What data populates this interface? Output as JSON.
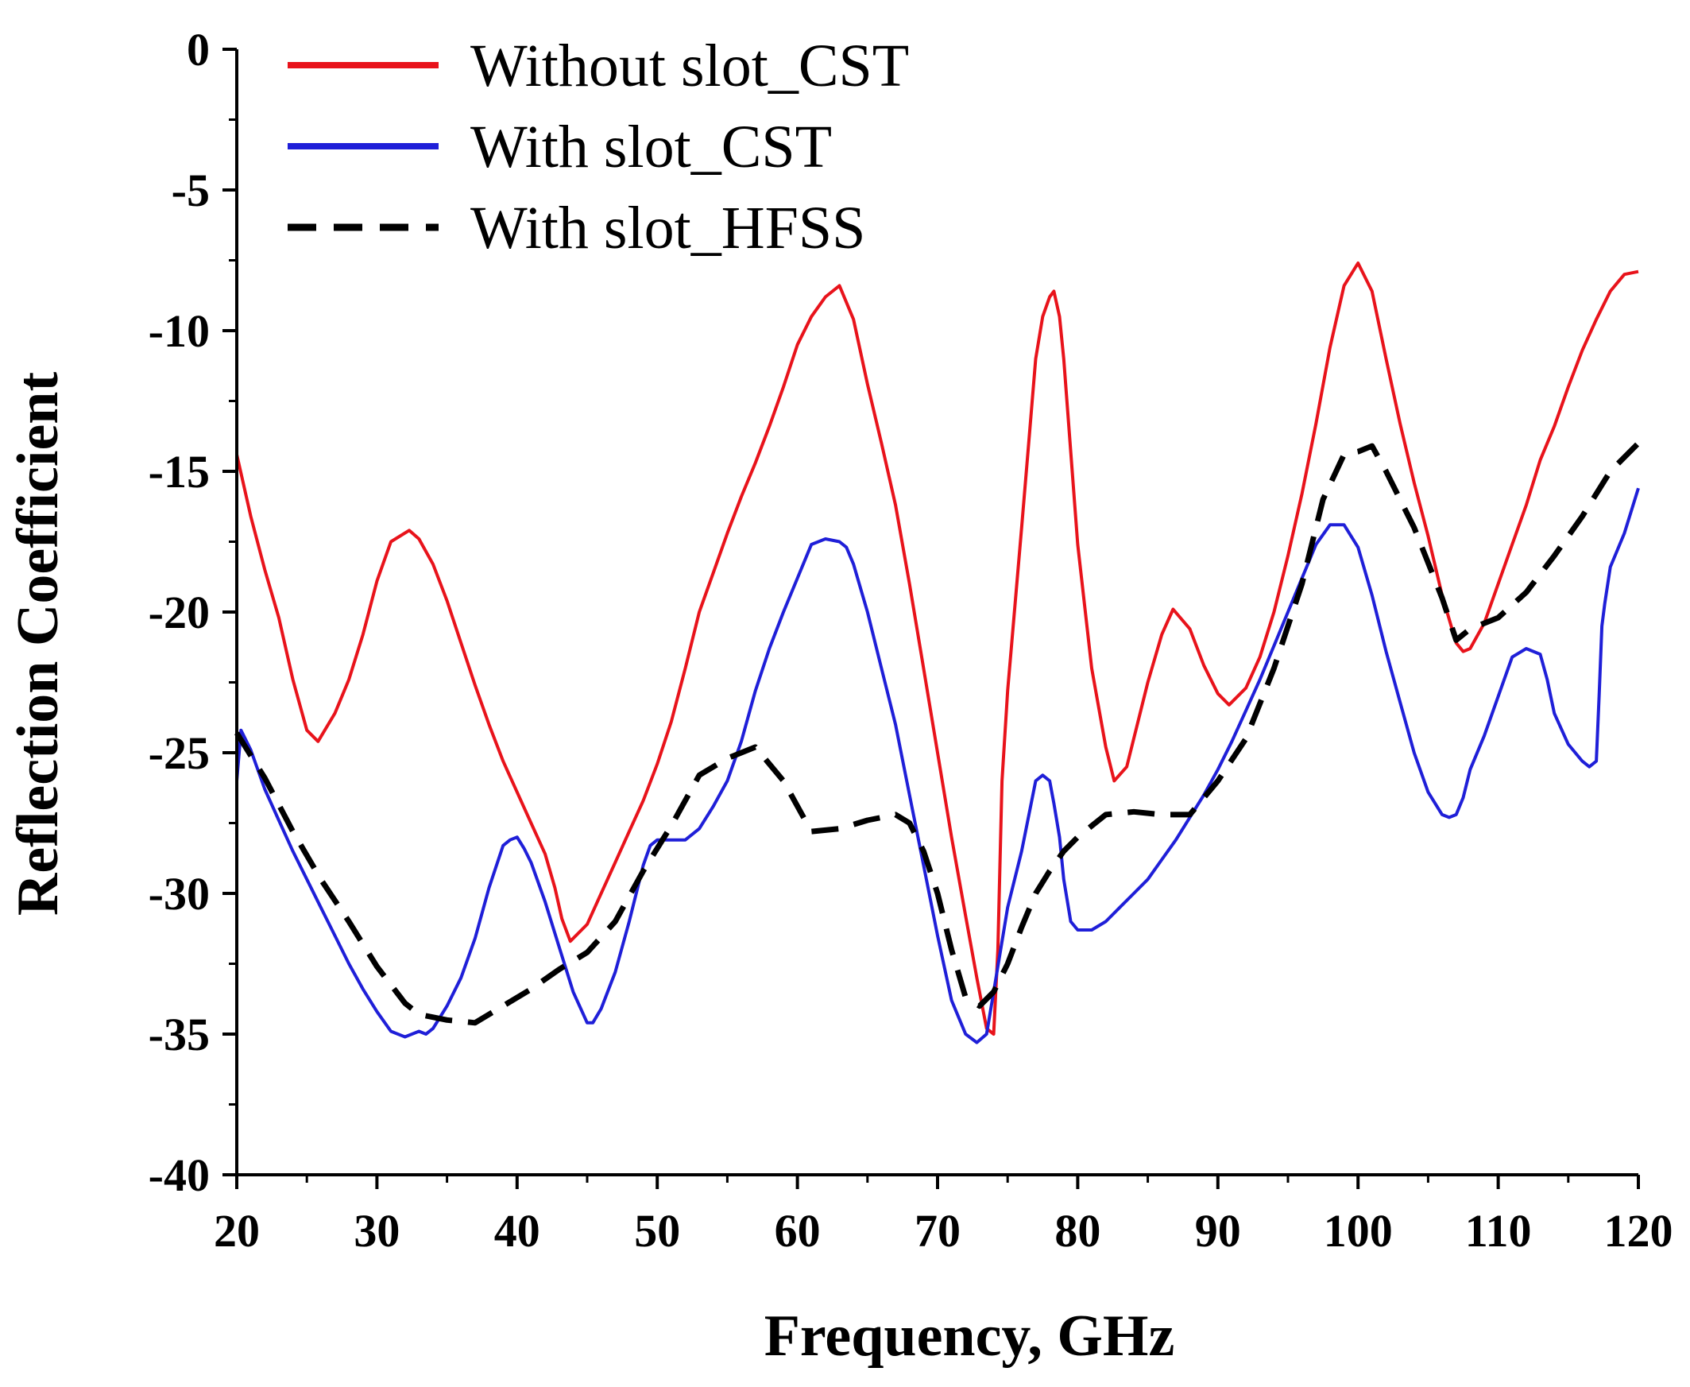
{
  "chart_data": {
    "type": "line",
    "title": "",
    "xlabel": "Frequency, GHz",
    "ylabel": "Reflection Coefficient",
    "xlim": [
      20,
      120
    ],
    "ylim": [
      -40,
      0
    ],
    "x_ticks": [
      20,
      30,
      40,
      50,
      60,
      70,
      80,
      90,
      100,
      110,
      120
    ],
    "x_tick_labels": [
      "20",
      "30",
      "40",
      "50",
      "60",
      "70",
      "80",
      "90",
      "100",
      "110",
      "120"
    ],
    "y_ticks": [
      0,
      -5,
      -10,
      -15,
      -20,
      -25,
      -30,
      -35,
      -40
    ],
    "y_tick_labels": [
      "0",
      "-5",
      "-10",
      "-15",
      "-20",
      "-25",
      "-30",
      "-35",
      "-40"
    ],
    "grid": false,
    "legend_position": "top-left",
    "series": [
      {
        "name": "Without slot_CST",
        "color": "#e8131b",
        "dash": "solid",
        "x": [
          20,
          21,
          22,
          23,
          24,
          25,
          25.8,
          27,
          28,
          29,
          30,
          31,
          32.3,
          33,
          34,
          35,
          36,
          37,
          38,
          39,
          40,
          41,
          42,
          42.7,
          43.2,
          43.8,
          45,
          46,
          47,
          48,
          49,
          50,
          51,
          52,
          53,
          54,
          55,
          56,
          57,
          58,
          59,
          60,
          61,
          62,
          63,
          64,
          65,
          66,
          67,
          68,
          69,
          70,
          71,
          72,
          72.8,
          73.5,
          74,
          74.3,
          74.6,
          75,
          76,
          76.5,
          77,
          77.5,
          78,
          78.3,
          78.7,
          79,
          79.5,
          80,
          81,
          82,
          82.6,
          83.5,
          85,
          86,
          86.8,
          88,
          89,
          90,
          90.8,
          92,
          93,
          94,
          95,
          96,
          97,
          98,
          99,
          100,
          101,
          102,
          103,
          104,
          105,
          106,
          107,
          107.5,
          108,
          109,
          110,
          111,
          112,
          113,
          114,
          115,
          116,
          117,
          118,
          119,
          120
        ],
        "values": [
          -14.4,
          -16.6,
          -18.5,
          -20.2,
          -22.4,
          -24.2,
          -24.6,
          -23.6,
          -22.4,
          -20.8,
          -18.9,
          -17.5,
          -17.1,
          -17.4,
          -18.3,
          -19.6,
          -21.1,
          -22.6,
          -24.0,
          -25.3,
          -26.4,
          -27.5,
          -28.6,
          -29.8,
          -30.9,
          -31.7,
          -31.1,
          -30.0,
          -28.9,
          -27.8,
          -26.7,
          -25.4,
          -23.9,
          -22.0,
          -20.0,
          -18.6,
          -17.2,
          -15.9,
          -14.7,
          -13.4,
          -12.0,
          -10.5,
          -9.5,
          -8.8,
          -8.4,
          -9.6,
          -11.9,
          -14.0,
          -16.2,
          -19.0,
          -22.0,
          -25.0,
          -28.0,
          -30.8,
          -33.0,
          -34.8,
          -35.0,
          -32.0,
          -26.0,
          -22.8,
          -17.0,
          -14.0,
          -11.0,
          -9.5,
          -8.8,
          -8.6,
          -9.5,
          -11.0,
          -14.3,
          -17.6,
          -22.0,
          -24.8,
          -26.0,
          -25.5,
          -22.5,
          -20.8,
          -19.9,
          -20.6,
          -21.9,
          -22.9,
          -23.3,
          -22.7,
          -21.6,
          -20.0,
          -18.0,
          -15.8,
          -13.3,
          -10.6,
          -8.4,
          -7.6,
          -8.6,
          -11.0,
          -13.3,
          -15.4,
          -17.3,
          -19.4,
          -21.1,
          -21.4,
          -21.3,
          -20.4,
          -19.0,
          -17.6,
          -16.2,
          -14.6,
          -13.4,
          -12.0,
          -10.7,
          -9.6,
          -8.6,
          -8.0,
          -7.9
        ]
      },
      {
        "name": "With slot_CST",
        "color": "#1f1fd8",
        "dash": "solid",
        "x": [
          20,
          20.3,
          21,
          22,
          23,
          24,
          25,
          26,
          27,
          28,
          29,
          30,
          31,
          32,
          33,
          33.5,
          34,
          35,
          36,
          37,
          38,
          39,
          39.5,
          40,
          40.5,
          41,
          42,
          43,
          44,
          45,
          45.4,
          46,
          47,
          48,
          49,
          49.5,
          50,
          51,
          52,
          53,
          54,
          55,
          56,
          57,
          58,
          59,
          60,
          61,
          62,
          63,
          63.5,
          64,
          65,
          66,
          67,
          68,
          69,
          70,
          71,
          72,
          72.8,
          73.5,
          74,
          75,
          76,
          77,
          77.5,
          78,
          78.3,
          78.7,
          79,
          79.5,
          80,
          81,
          82,
          83,
          84,
          85,
          86,
          87,
          88,
          89,
          90,
          91,
          92,
          93,
          94,
          95,
          96,
          97,
          98,
          99,
          100,
          101,
          102,
          103,
          104,
          105,
          106,
          106.5,
          107,
          107.5,
          108,
          109,
          110,
          111,
          112,
          113,
          113.5,
          114,
          115,
          116,
          116.5,
          117,
          117.2,
          117.4,
          117.6,
          118,
          119,
          120
        ],
        "values": [
          -26.0,
          -24.2,
          -24.9,
          -26.3,
          -27.4,
          -28.5,
          -29.5,
          -30.5,
          -31.5,
          -32.5,
          -33.4,
          -34.2,
          -34.9,
          -35.1,
          -34.9,
          -35.0,
          -34.8,
          -34.0,
          -33.0,
          -31.6,
          -29.8,
          -28.3,
          -28.1,
          -28.0,
          -28.4,
          -28.9,
          -30.3,
          -31.9,
          -33.5,
          -34.6,
          -34.6,
          -34.1,
          -32.8,
          -31.0,
          -29.0,
          -28.3,
          -28.1,
          -28.1,
          -28.1,
          -27.7,
          -26.9,
          -26.0,
          -24.6,
          -22.8,
          -21.3,
          -20.0,
          -18.8,
          -17.6,
          -17.4,
          -17.5,
          -17.7,
          -18.3,
          -20.0,
          -22.0,
          -24.0,
          -26.5,
          -29.0,
          -31.5,
          -33.8,
          -35.0,
          -35.3,
          -35.0,
          -33.5,
          -30.5,
          -28.5,
          -26.0,
          -25.8,
          -26.0,
          -26.8,
          -28.0,
          -29.5,
          -31.0,
          -31.3,
          -31.3,
          -31.0,
          -30.5,
          -30.0,
          -29.5,
          -28.8,
          -28.1,
          -27.3,
          -26.5,
          -25.6,
          -24.6,
          -23.5,
          -22.4,
          -21.2,
          -20.0,
          -18.8,
          -17.6,
          -16.9,
          -16.9,
          -17.7,
          -19.4,
          -21.4,
          -23.2,
          -25.0,
          -26.4,
          -27.2,
          -27.3,
          -27.2,
          -26.6,
          -25.6,
          -24.4,
          -23.0,
          -21.6,
          -21.3,
          -21.5,
          -22.4,
          -23.6,
          -24.7,
          -25.3,
          -25.5,
          -25.3,
          -23.0,
          -20.5,
          -19.7,
          -18.4,
          -17.2,
          -15.6
        ]
      },
      {
        "name": "With slot_HFSS",
        "color": "#000000",
        "dash": "dashed",
        "x": [
          20,
          21,
          22,
          24,
          26,
          28,
          30,
          32,
          33,
          35,
          37,
          39,
          41,
          43,
          45,
          47,
          49,
          51,
          53,
          55,
          57,
          59,
          61,
          63,
          65,
          67,
          68,
          69,
          70,
          71,
          72,
          73,
          74,
          75,
          76,
          77,
          78,
          79,
          80,
          81,
          82,
          84,
          86,
          88,
          90,
          92,
          94,
          96,
          97.5,
          99,
          100,
          101,
          102,
          104,
          106,
          107,
          108,
          110,
          112,
          114,
          116,
          118,
          120
        ],
        "values": [
          -24.3,
          -25.1,
          -25.9,
          -27.8,
          -29.5,
          -31.0,
          -32.6,
          -33.9,
          -34.3,
          -34.5,
          -34.6,
          -34.0,
          -33.4,
          -32.7,
          -32.1,
          -31.0,
          -29.2,
          -27.6,
          -25.8,
          -25.2,
          -24.8,
          -26.0,
          -27.8,
          -27.7,
          -27.4,
          -27.2,
          -27.5,
          -28.5,
          -30.0,
          -32.0,
          -33.7,
          -34.0,
          -33.5,
          -32.5,
          -31.2,
          -30.0,
          -29.2,
          -28.5,
          -28.0,
          -27.6,
          -27.2,
          -27.1,
          -27.2,
          -27.2,
          -26.0,
          -24.5,
          -22.0,
          -19.0,
          -16.0,
          -14.4,
          -14.3,
          -14.1,
          -15.0,
          -17.0,
          -19.5,
          -21.0,
          -20.6,
          -20.2,
          -19.3,
          -18.0,
          -16.6,
          -15.0,
          -14.0
        ]
      }
    ]
  }
}
